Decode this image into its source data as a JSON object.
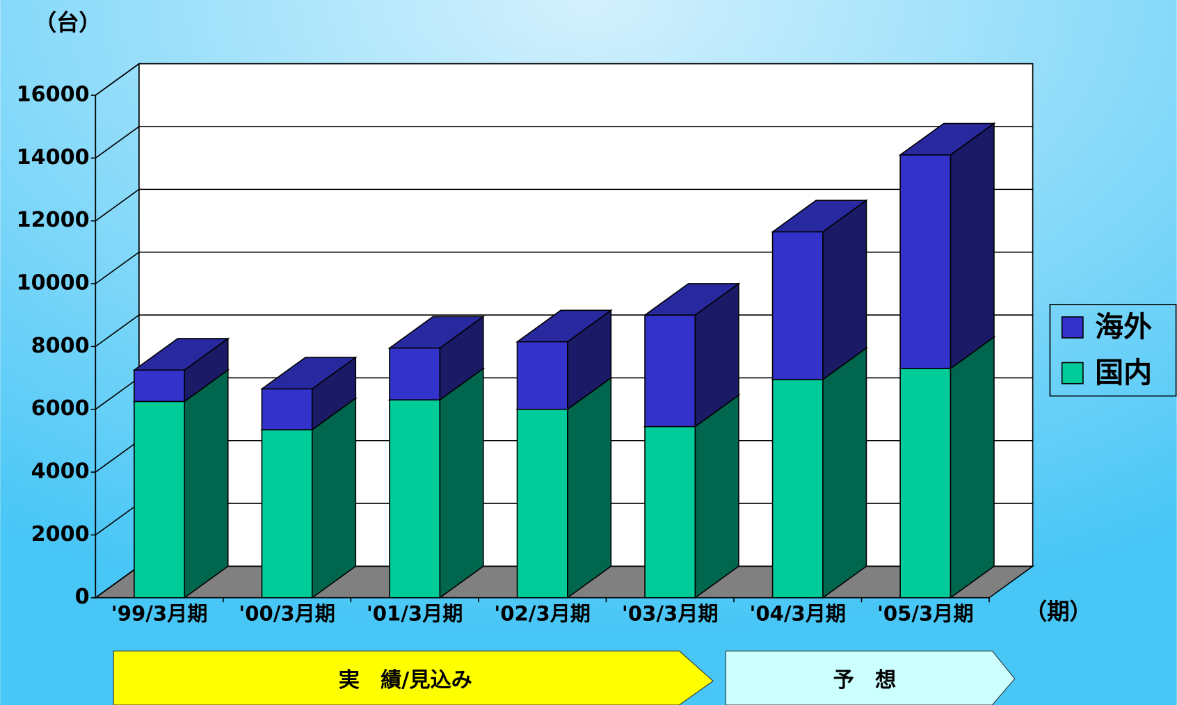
{
  "chart_data": {
    "type": "bar3d_stacked",
    "y_unit_label": "（台）",
    "x_unit_label": "（期）",
    "categories": [
      "'99/3月期",
      "'00/3月期",
      "'01/3月期",
      "'02/3月期",
      "'03/3月期",
      "'04/3月期",
      "'05/3月期"
    ],
    "series": [
      {
        "name": "国内",
        "color": "#00cc99",
        "values": [
          6250,
          5350,
          6300,
          6000,
          5450,
          6950,
          7300
        ]
      },
      {
        "name": "海外",
        "color": "#3333cc",
        "values": [
          1000,
          1300,
          1650,
          2150,
          3550,
          4700,
          6800
        ]
      }
    ],
    "ylim": [
      0,
      16000
    ],
    "yticks": [
      0,
      2000,
      4000,
      6000,
      8000,
      10000,
      12000,
      14000,
      16000
    ],
    "grid": true,
    "legend": "right",
    "annotations": [
      "実　績/見込み",
      "予　想"
    ]
  }
}
